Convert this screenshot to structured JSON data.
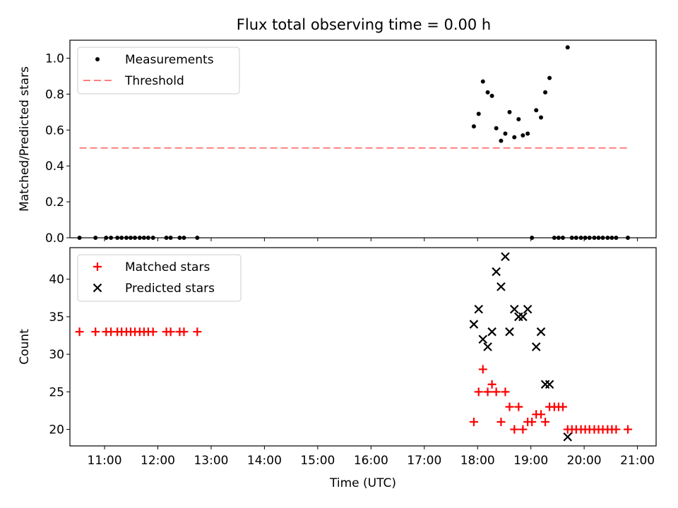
{
  "title": "Flux total observing time = 0.00 h",
  "x_tick_labels": [
    "11:00",
    "12:00",
    "13:00",
    "14:00",
    "15:00",
    "16:00",
    "17:00",
    "18:00",
    "19:00",
    "20:00",
    "21:00"
  ],
  "chart_data": [
    {
      "type": "scatter",
      "panel": "top",
      "ylabel": "Matched/Predicted stars",
      "xlabel": "",
      "xlim": [
        10.35,
        21.35
      ],
      "ylim": [
        0.0,
        1.1
      ],
      "y_ticks": [
        0.0,
        0.2,
        0.4,
        0.6,
        0.8,
        1.0
      ],
      "y_tick_labels": [
        "0.0",
        "0.2",
        "0.4",
        "0.6",
        "0.8",
        "1.0"
      ],
      "grid": false,
      "legend": {
        "position": "upper-left",
        "entries": [
          "Measurements",
          "Threshold"
        ]
      },
      "series": [
        {
          "name": "Measurements",
          "kind": "points",
          "color": "#000000",
          "points": [
            [
              10.53,
              0.0
            ],
            [
              10.83,
              0.0
            ],
            [
              11.03,
              0.0
            ],
            [
              11.12,
              0.0
            ],
            [
              11.24,
              0.0
            ],
            [
              11.32,
              0.0
            ],
            [
              11.41,
              0.0
            ],
            [
              11.49,
              0.0
            ],
            [
              11.57,
              0.0
            ],
            [
              11.66,
              0.0
            ],
            [
              11.74,
              0.0
            ],
            [
              11.82,
              0.0
            ],
            [
              11.91,
              0.0
            ],
            [
              12.16,
              0.0
            ],
            [
              12.24,
              0.0
            ],
            [
              12.41,
              0.0
            ],
            [
              12.49,
              0.0
            ],
            [
              12.74,
              0.0
            ],
            [
              17.93,
              0.62
            ],
            [
              18.02,
              0.69
            ],
            [
              18.1,
              0.87
            ],
            [
              18.19,
              0.81
            ],
            [
              18.27,
              0.79
            ],
            [
              18.35,
              0.61
            ],
            [
              18.44,
              0.54
            ],
            [
              18.52,
              0.58
            ],
            [
              18.6,
              0.7
            ],
            [
              18.69,
              0.56
            ],
            [
              18.77,
              0.66
            ],
            [
              18.85,
              0.57
            ],
            [
              18.94,
              0.58
            ],
            [
              19.02,
              0.0
            ],
            [
              19.1,
              0.71
            ],
            [
              19.19,
              0.67
            ],
            [
              19.27,
              0.81
            ],
            [
              19.35,
              0.89
            ],
            [
              19.44,
              0.0
            ],
            [
              19.52,
              0.0
            ],
            [
              19.6,
              0.0
            ],
            [
              19.69,
              1.06
            ],
            [
              19.77,
              0.0
            ],
            [
              19.85,
              0.0
            ],
            [
              19.94,
              0.0
            ],
            [
              20.02,
              0.0
            ],
            [
              20.1,
              0.0
            ],
            [
              20.19,
              0.0
            ],
            [
              20.27,
              0.0
            ],
            [
              20.35,
              0.0
            ],
            [
              20.44,
              0.0
            ],
            [
              20.52,
              0.0
            ],
            [
              20.6,
              0.0
            ],
            [
              20.82,
              0.0
            ]
          ]
        },
        {
          "name": "Threshold",
          "kind": "dashed-line",
          "color": "#ff7f7f",
          "points": [
            [
              10.53,
              0.5
            ],
            [
              20.82,
              0.5
            ]
          ]
        }
      ]
    },
    {
      "type": "scatter",
      "panel": "bottom",
      "ylabel": "Count",
      "xlabel": "Time (UTC)",
      "xlim": [
        10.35,
        21.35
      ],
      "ylim": [
        17.8,
        44.2
      ],
      "y_ticks": [
        20,
        25,
        30,
        35,
        40
      ],
      "y_tick_labels": [
        "20",
        "25",
        "30",
        "35",
        "40"
      ],
      "grid": false,
      "legend": {
        "position": "upper-left",
        "entries": [
          "Matched stars",
          "Predicted stars"
        ]
      },
      "series": [
        {
          "name": "Matched stars",
          "marker": "plus",
          "color": "#ff0000",
          "points": [
            [
              10.53,
              33
            ],
            [
              10.83,
              33
            ],
            [
              11.03,
              33
            ],
            [
              11.12,
              33
            ],
            [
              11.24,
              33
            ],
            [
              11.32,
              33
            ],
            [
              11.41,
              33
            ],
            [
              11.49,
              33
            ],
            [
              11.57,
              33
            ],
            [
              11.66,
              33
            ],
            [
              11.74,
              33
            ],
            [
              11.82,
              33
            ],
            [
              11.91,
              33
            ],
            [
              12.16,
              33
            ],
            [
              12.24,
              33
            ],
            [
              12.41,
              33
            ],
            [
              12.49,
              33
            ],
            [
              12.74,
              33
            ],
            [
              17.93,
              21
            ],
            [
              18.02,
              25
            ],
            [
              18.1,
              28
            ],
            [
              18.19,
              25
            ],
            [
              18.27,
              26
            ],
            [
              18.35,
              25
            ],
            [
              18.44,
              21
            ],
            [
              18.52,
              25
            ],
            [
              18.6,
              23
            ],
            [
              18.69,
              20
            ],
            [
              18.77,
              23
            ],
            [
              18.85,
              20
            ],
            [
              18.94,
              21
            ],
            [
              19.02,
              21
            ],
            [
              19.1,
              22
            ],
            [
              19.19,
              22
            ],
            [
              19.27,
              21
            ],
            [
              19.35,
              23
            ],
            [
              19.44,
              23
            ],
            [
              19.52,
              23
            ],
            [
              19.6,
              23
            ],
            [
              19.69,
              20
            ],
            [
              19.77,
              20
            ],
            [
              19.85,
              20
            ],
            [
              19.94,
              20
            ],
            [
              20.02,
              20
            ],
            [
              20.1,
              20
            ],
            [
              20.19,
              20
            ],
            [
              20.27,
              20
            ],
            [
              20.35,
              20
            ],
            [
              20.44,
              20
            ],
            [
              20.52,
              20
            ],
            [
              20.6,
              20
            ],
            [
              20.82,
              20
            ]
          ]
        },
        {
          "name": "Predicted stars",
          "marker": "x",
          "color": "#000000",
          "points": [
            [
              17.93,
              34
            ],
            [
              18.02,
              36
            ],
            [
              18.1,
              32
            ],
            [
              18.19,
              31
            ],
            [
              18.27,
              33
            ],
            [
              18.35,
              41
            ],
            [
              18.44,
              39
            ],
            [
              18.52,
              43
            ],
            [
              18.6,
              33
            ],
            [
              18.69,
              36
            ],
            [
              18.77,
              35
            ],
            [
              18.85,
              35
            ],
            [
              18.94,
              36
            ],
            [
              19.1,
              31
            ],
            [
              19.19,
              33
            ],
            [
              19.27,
              26
            ],
            [
              19.35,
              26
            ],
            [
              19.69,
              19
            ]
          ]
        }
      ]
    }
  ]
}
